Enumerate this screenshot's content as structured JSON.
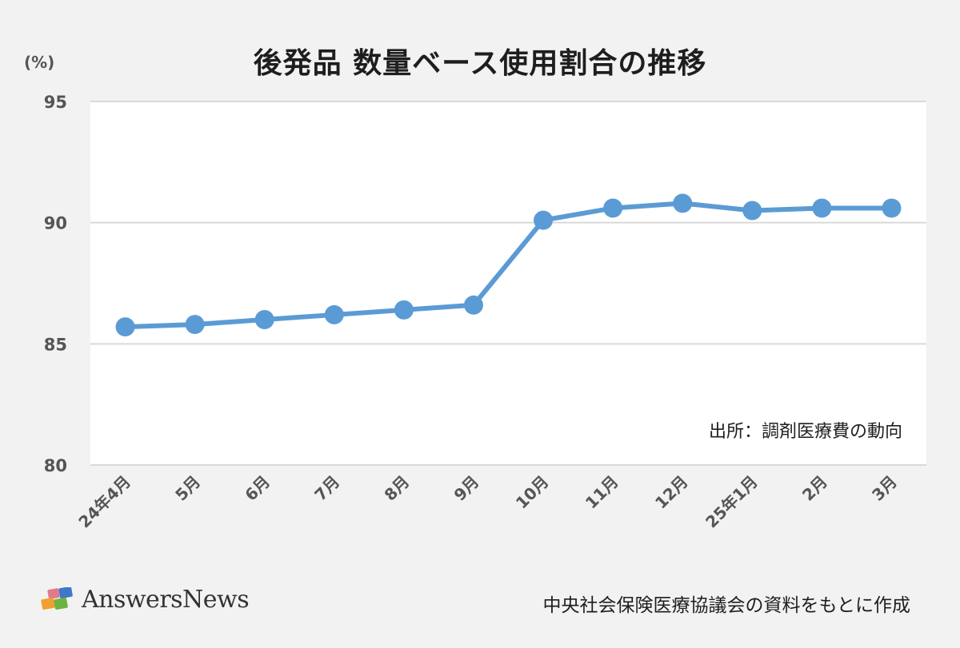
{
  "header": {
    "title": "後発品 数量ベース使用割合の推移",
    "unit_label": "(%)"
  },
  "annotation": {
    "source_note": "出所：調剤医療費の動向"
  },
  "footer": {
    "logo_text": "AnswersNews",
    "credit": "中央社会保険医療協議会の資料をもとに作成"
  },
  "colors": {
    "series": "#5b9bd5",
    "background": "#f2f2f2",
    "plot_background": "#ffffff",
    "gridline": "#d9d9d9",
    "tick_text": "#555555",
    "title_text": "#1e1e1e"
  },
  "chart_data": {
    "type": "line",
    "title": "後発品 数量ベース使用割合の推移",
    "xlabel": "",
    "ylabel": "(%)",
    "categories": [
      "24年4月",
      "5月",
      "6月",
      "7月",
      "8月",
      "9月",
      "10月",
      "11月",
      "12月",
      "25年1月",
      "2月",
      "3月"
    ],
    "series": [
      {
        "name": "後発品 数量ベース使用割合",
        "values": [
          85.7,
          85.8,
          86.0,
          86.2,
          86.4,
          86.6,
          90.1,
          90.6,
          90.8,
          90.5,
          90.6,
          90.6
        ],
        "markers": true
      }
    ],
    "ylim": [
      80,
      95
    ],
    "yticks": [
      80,
      85,
      90,
      95
    ],
    "grid": true,
    "legend": "none",
    "annotations": [
      "出所：調剤医療費の動向"
    ]
  }
}
